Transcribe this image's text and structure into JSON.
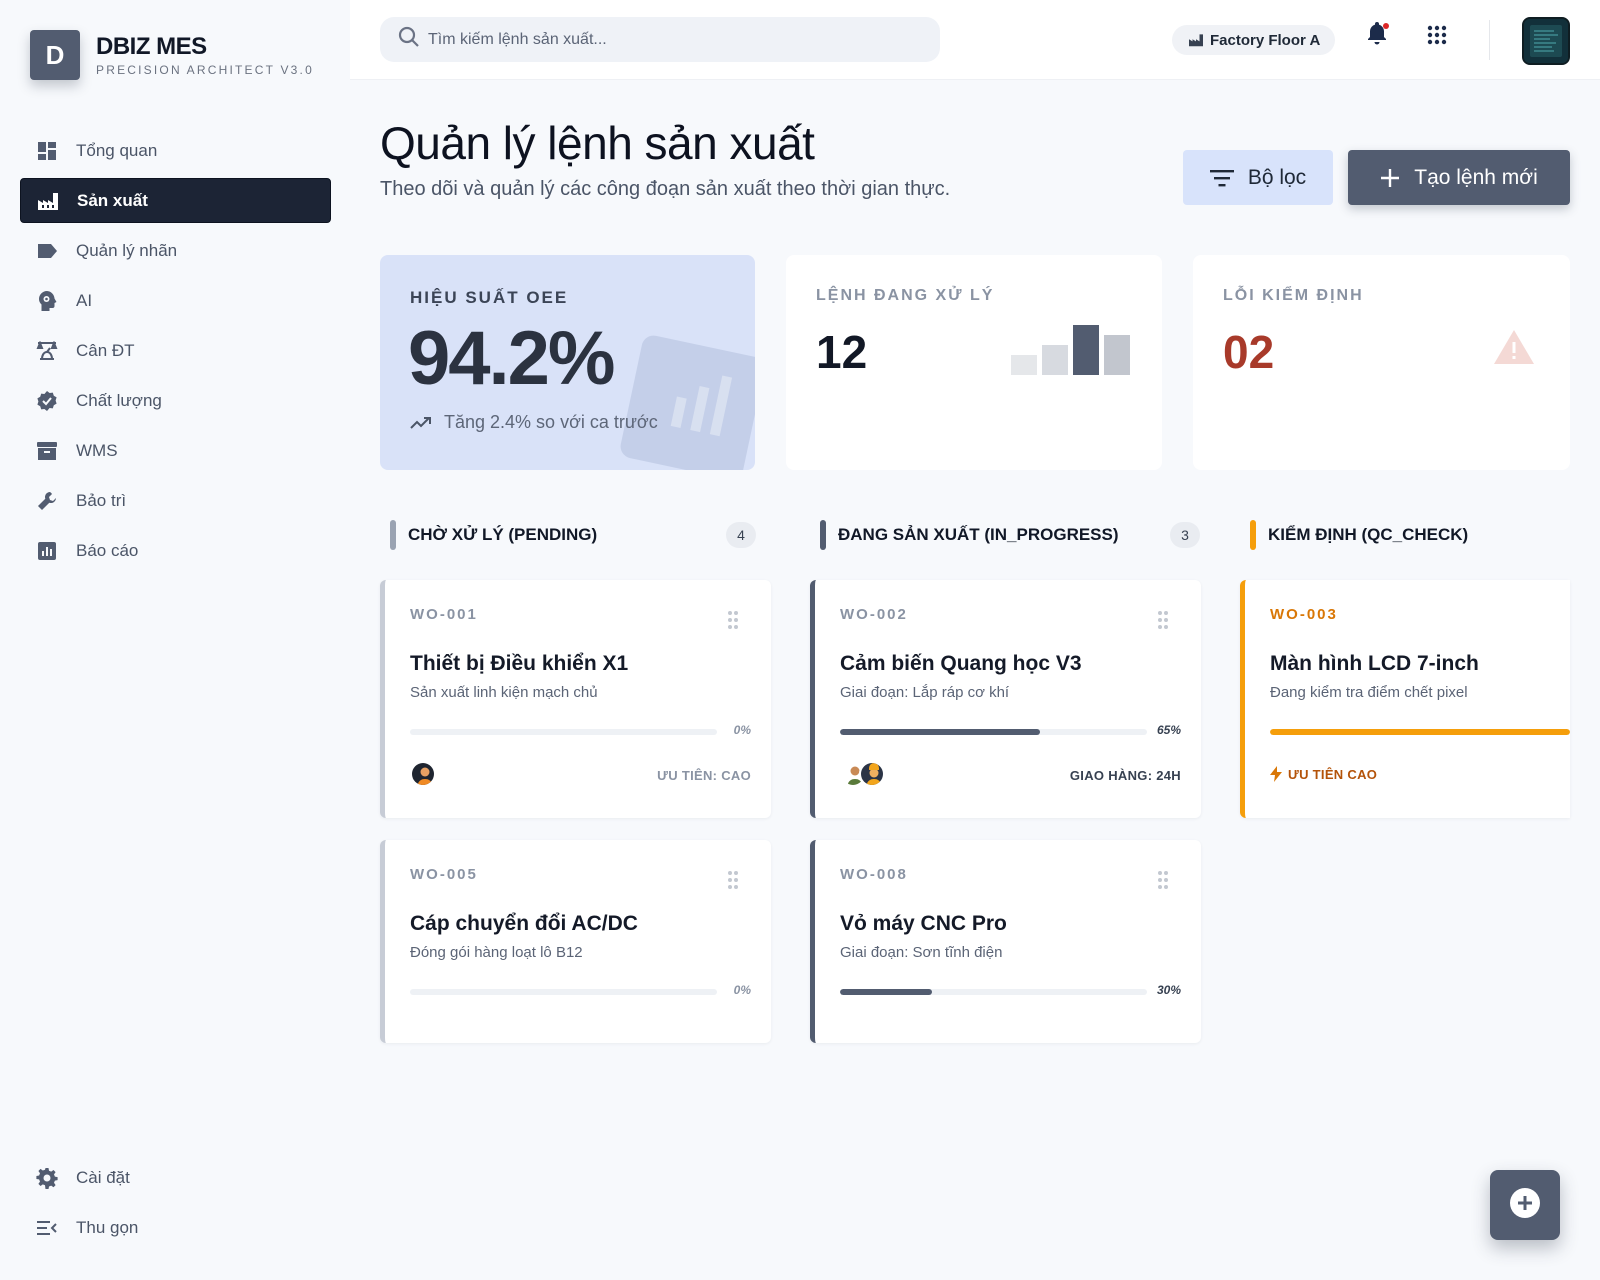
{
  "brand": {
    "logo_letter": "D",
    "name": "DBIZ MES",
    "subtitle": "PRECISION ARCHITECT V3.0"
  },
  "sidebar": {
    "items": [
      {
        "label": "Tổng quan",
        "icon": "dashboard-icon"
      },
      {
        "label": "Sản xuất",
        "icon": "factory-icon",
        "active": true
      },
      {
        "label": "Quản lý nhãn",
        "icon": "label-icon"
      },
      {
        "label": "AI",
        "icon": "ai-head-icon"
      },
      {
        "label": "Cân ĐT",
        "icon": "scale-icon"
      },
      {
        "label": "Chất lượng",
        "icon": "verified-icon"
      },
      {
        "label": "WMS",
        "icon": "inventory-icon"
      },
      {
        "label": "Bảo trì",
        "icon": "wrench-icon"
      },
      {
        "label": "Báo cáo",
        "icon": "report-icon"
      }
    ],
    "bottom": [
      {
        "label": "Cài đặt",
        "icon": "gear-icon"
      },
      {
        "label": "Thu gọn",
        "icon": "collapse-icon"
      }
    ]
  },
  "topbar": {
    "search_placeholder": "Tìm kiếm lệnh sản xuất...",
    "factory": "Factory Floor A"
  },
  "page": {
    "title": "Quản lý lệnh sản xuất",
    "subtitle": "Theo dõi và quản lý các công đoạn sản xuất theo thời gian thực.",
    "filter_label": "Bộ lọc",
    "create_label": "Tạo lệnh mới"
  },
  "stats": {
    "oee": {
      "label": "HIỆU SUẤT OEE",
      "value": "94.2%",
      "trend": "Tăng 2.4% so với ca trước"
    },
    "active": {
      "label": "LỆNH ĐANG XỬ LÝ",
      "value": "12"
    },
    "defects": {
      "label": "LỖI KIỂM ĐỊNH",
      "value": "02"
    }
  },
  "columns": {
    "pending": {
      "title": "CHỜ XỬ LÝ (PENDING)",
      "count": "4",
      "color": "#9aa3b2"
    },
    "in_progress": {
      "title": "ĐANG SẢN XUẤT (IN_PROGRESS)",
      "count": "3",
      "color": "#525c70"
    },
    "qc_check": {
      "title": "KIỂM ĐỊNH (QC_CHECK)",
      "color": "#f59e0b"
    }
  },
  "cards": {
    "wo001": {
      "code": "WO-001",
      "name": "Thiết bị Điều khiển X1",
      "desc": "Sản xuất linh kiện mạch chủ",
      "progress_pct": 0,
      "progress_text": "0%",
      "tag": "ƯU TIÊN: CAO"
    },
    "wo002": {
      "code": "WO-002",
      "name": "Cảm biến Quang học V3",
      "desc": "Giai đoạn: Lắp ráp cơ khí",
      "progress_pct": 65,
      "progress_text": "65%",
      "tag": "GIAO HÀNG: 24H"
    },
    "wo003": {
      "code": "WO-003",
      "name": "Màn hình LCD 7-inch",
      "desc": "Đang kiểm tra điểm chết pixel",
      "progress_pct": 100,
      "tag": "ƯU TIÊN CAO"
    },
    "wo005": {
      "code": "WO-005",
      "name": "Cáp chuyển đổi AC/DC",
      "desc": "Đóng gói hàng loạt lô B12",
      "progress_pct": 0,
      "progress_text": "0%"
    },
    "wo008": {
      "code": "WO-008",
      "name": "Vỏ máy CNC Pro",
      "desc": "Giai đoạn: Sơn tĩnh điện",
      "progress_pct": 30,
      "progress_text": "30%"
    }
  },
  "colors": {
    "accent": "#525c70",
    "active_nav": "#1c2435",
    "qc": "#f59e0b",
    "defect": "#a83a2a",
    "oee_card": "#d9e2f8"
  }
}
